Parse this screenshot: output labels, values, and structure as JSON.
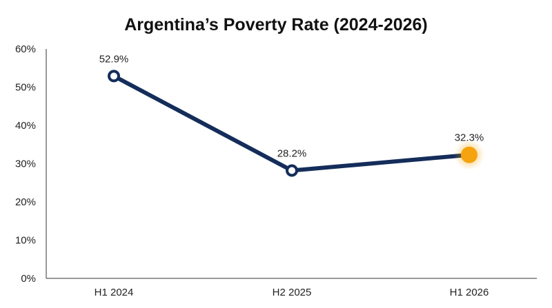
{
  "chart_data": {
    "type": "line",
    "title": "Argentina’s Poverty Rate (2024-2026)",
    "xlabel": "",
    "ylabel": "",
    "categories": [
      "H1 2024",
      "H2 2025",
      "H1 2026"
    ],
    "series": [
      {
        "values": [
          52.9,
          28.2,
          32.3
        ],
        "data_labels": [
          "52.9%",
          "28.2%",
          "32.3%"
        ],
        "color": "#142d5a",
        "highlight_color": "#f5a30f"
      }
    ],
    "ylim": [
      0,
      60
    ],
    "y_ticks": [
      0,
      10,
      20,
      30,
      40,
      50,
      60
    ],
    "y_tick_labels": [
      "0%",
      "10%",
      "20%",
      "30%",
      "40%",
      "50%",
      "60%"
    ],
    "highlighted_point": "H1 2026",
    "grid": false,
    "legend": "none"
  }
}
